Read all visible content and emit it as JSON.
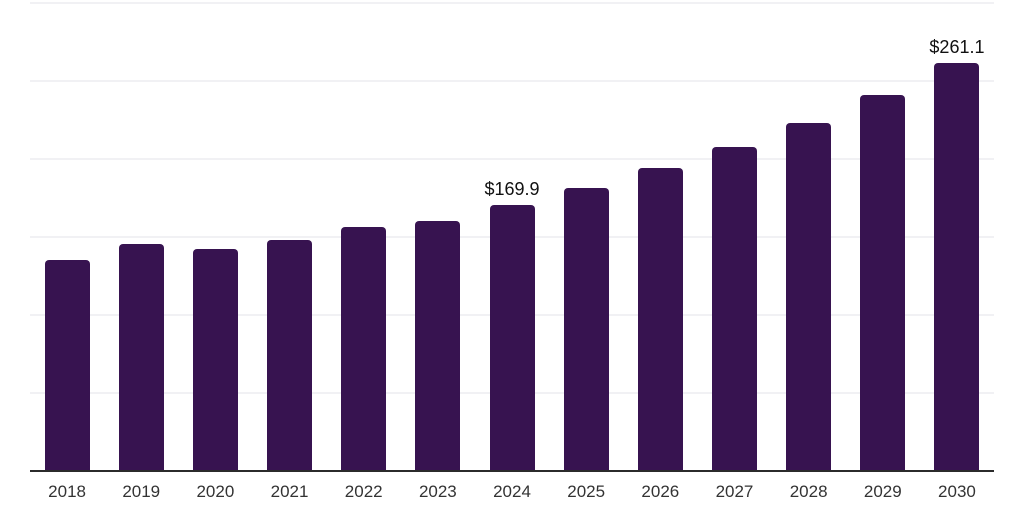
{
  "chart_data": {
    "type": "bar",
    "title": "",
    "xlabel": "",
    "ylabel": "",
    "categories": [
      "2018",
      "2019",
      "2020",
      "2021",
      "2022",
      "2023",
      "2024",
      "2025",
      "2026",
      "2027",
      "2028",
      "2029",
      "2030"
    ],
    "values": [
      134.8,
      144.6,
      141.8,
      147.6,
      156.1,
      159.9,
      169.9,
      180.8,
      193.4,
      206.8,
      222.4,
      240.5,
      261.1
    ],
    "data_labels": {
      "2024": "$169.9",
      "2030": "$261.1"
    },
    "ylim": [
      0,
      300
    ],
    "grid_interval": 50,
    "grid": "horizontal",
    "legend": "none",
    "colors": {
      "bar": "#371350",
      "gridline": "#f1f1f4",
      "axis_line": "#2b2b2b",
      "tick_label": "#333333",
      "data_label": "#111111",
      "background": "#ffffff"
    }
  }
}
